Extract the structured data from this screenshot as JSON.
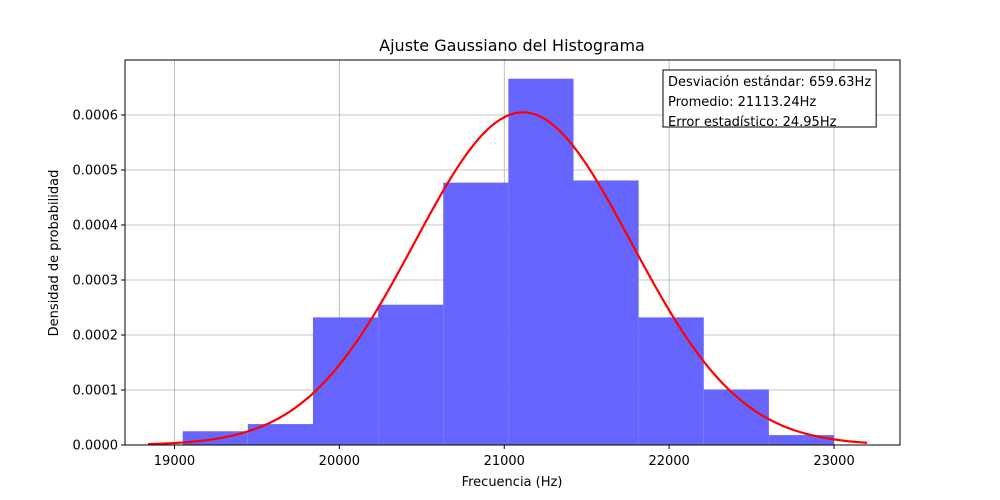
{
  "chart_data": {
    "type": "bar",
    "title": "Ajuste Gaussiano del Histograma",
    "xlabel": "Frecuencia (Hz)",
    "ylabel": "Densidad de probabilidad",
    "xlim": [
      18700,
      23400
    ],
    "ylim": [
      0,
      0.0007
    ],
    "xticks": [
      19000,
      20000,
      21000,
      22000,
      23000
    ],
    "yticks": [
      "0.0000",
      "0.0001",
      "0.0002",
      "0.0003",
      "0.0004",
      "0.0005",
      "0.0006"
    ],
    "grid": true,
    "histogram": {
      "bin_edges": [
        19050,
        19445,
        19840,
        20235,
        20630,
        21025,
        21420,
        21815,
        22210,
        22605,
        23000
      ],
      "values": [
        2.5e-05,
        3.8e-05,
        0.000232,
        0.000255,
        0.000477,
        0.000666,
        0.000481,
        0.000232,
        0.000101,
        1.8e-05
      ],
      "color": "#6666ff"
    },
    "gaussian_fit": {
      "mean": 21113.24,
      "std": 659.63,
      "x_range": [
        18840,
        23200
      ],
      "color": "#ff0000"
    },
    "stats_box": {
      "location": "top-right",
      "lines": [
        "Desviación estándar: 659.63Hz",
        "Promedio: 21113.24Hz",
        "Error estadístico: 24.95Hz"
      ]
    }
  }
}
